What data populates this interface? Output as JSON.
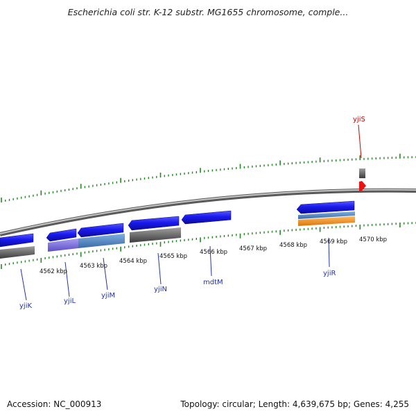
{
  "title": "Escherichia coli str. K-12 substr. MG1655 chromosome, comple...",
  "footer": {
    "accession": "Accession: NC_000913",
    "summary": "Topology: circular; Length: 4,639,675 bp; Genes: 4,255"
  },
  "colors": {
    "backbone": "#8a8a8a",
    "tick": "#1f8a1f",
    "gene_fwd": "#1a1aee",
    "gene_rev_label": "#2233aa",
    "highlight_label": "#cc0000",
    "highlight_feature": "#ee1111",
    "grey_feature": "#6e6e6e",
    "purple_feature": "#7b6fdb",
    "steel_feature": "#4f87c4",
    "orange_feature": "#f0921e"
  },
  "kbp_labels": [
    "4562 kbp",
    "4563 kbp",
    "4564 kbp",
    "4565 kbp",
    "4566 kbp",
    "4567 kbp",
    "4568 kbp",
    "4569 kbp",
    "4570 kbp"
  ],
  "genes": [
    {
      "name": "yjiK",
      "color": "#2233aa"
    },
    {
      "name": "yjiL",
      "color": "#2233aa"
    },
    {
      "name": "yjiM",
      "color": "#2233aa"
    },
    {
      "name": "yjiN",
      "color": "#2233aa"
    },
    {
      "name": "mdtM",
      "color": "#2233aa"
    },
    {
      "name": "yjiR",
      "color": "#2233aa"
    },
    {
      "name": "yjiS",
      "color": "#cc0000"
    }
  ]
}
